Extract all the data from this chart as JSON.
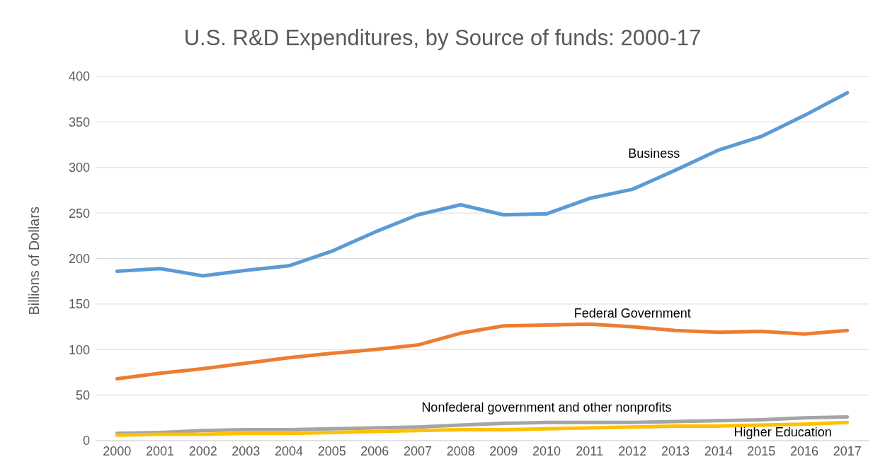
{
  "chart_data": {
    "type": "line",
    "title": "U.S. R&D Expenditures, by Source of funds: 2000-17",
    "ylabel": "Billions of Dollars",
    "categories": [
      "2000",
      "2001",
      "2002",
      "2003",
      "2004",
      "2005",
      "2006",
      "2007",
      "2008",
      "2009",
      "2010",
      "2011",
      "2012",
      "2013",
      "2014",
      "2015",
      "2016",
      "2017"
    ],
    "series": [
      {
        "name": "Business",
        "color": "#5b9bd5",
        "values": [
          186,
          189,
          181,
          187,
          192,
          208,
          229,
          248,
          259,
          248,
          249,
          266,
          276,
          297,
          319,
          334,
          357,
          382
        ]
      },
      {
        "name": "Federal Government",
        "color": "#ed7d31",
        "values": [
          68,
          74,
          79,
          85,
          91,
          96,
          100,
          105,
          118,
          126,
          127,
          128,
          125,
          121,
          119,
          120,
          117,
          121
        ]
      },
      {
        "name": "Nonfederal government and other nonprofits",
        "color": "#a5a5a5",
        "values": [
          8,
          9,
          11,
          12,
          12,
          13,
          14,
          15,
          17,
          19,
          20,
          20,
          20,
          21,
          22,
          23,
          25,
          26
        ]
      },
      {
        "name": "Higher Education",
        "color": "#ffc000",
        "values": [
          6,
          7,
          7,
          8,
          8,
          9,
          10,
          11,
          12,
          12,
          13,
          14,
          15,
          16,
          16,
          17,
          18,
          20
        ]
      }
    ],
    "ylim": [
      0,
      400
    ],
    "yticks": [
      0,
      50,
      100,
      150,
      200,
      250,
      300,
      350,
      400
    ],
    "grid": "y",
    "legend": false,
    "marker": "none",
    "line_style": "solid"
  }
}
